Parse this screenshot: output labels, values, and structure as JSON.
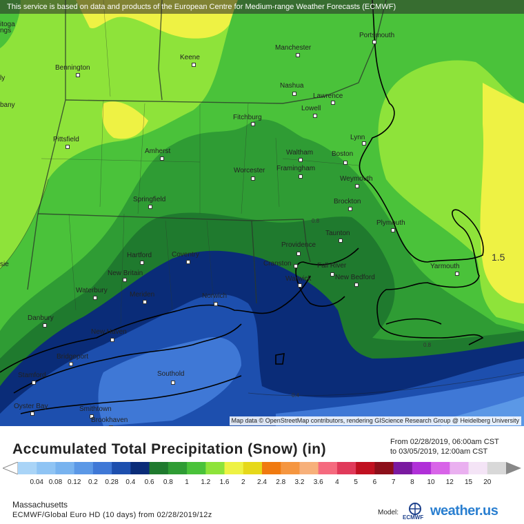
{
  "header": {
    "notice": "This service is based on data and products of the European Centre for Medium-range Weather Forecasts (ECMWF)"
  },
  "attribution": "Map data © OpenStreetMap contributors, rendering GIScience Research Group @ Heidelberg University",
  "title": "Accumulated Total Precipitation (Snow) (in)",
  "date_from": "From 02/28/2019, 06:00am CST",
  "date_to": "to 03/05/2019, 12:00am CST",
  "region": "Massachusetts",
  "model_run": "ECMWF/Global Euro HD (10 days) from 02/28/2019/12z",
  "model_label": "Model:",
  "model_logo_text": "ECMWF",
  "brand": "weather.us",
  "legend": {
    "ticks": [
      "0.04",
      "0.08",
      "0.12",
      "0.2",
      "0.28",
      "0.4",
      "0.6",
      "0.8",
      "1",
      "1.2",
      "1.6",
      "2",
      "2.4",
      "2.8",
      "3.2",
      "3.6",
      "4",
      "5",
      "6",
      "7",
      "8",
      "10",
      "12",
      "15",
      "20"
    ],
    "colors": [
      "#a9d4f7",
      "#8fc4f4",
      "#78b3ef",
      "#5b98e6",
      "#3f78d6",
      "#1d4fae",
      "#0a2c78",
      "#1f7a2e",
      "#2f9c34",
      "#4ac23a",
      "#8ee33a",
      "#eef244",
      "#e6d81a",
      "#f07a10",
      "#f59640",
      "#f7b07a",
      "#f56a7e",
      "#e03a5a",
      "#c01020",
      "#8c0f1a",
      "#7a1aa0",
      "#b030d8",
      "#d864e8",
      "#eab0f0",
      "#f4e4f6",
      "#d8d8d8"
    ]
  },
  "cities": [
    {
      "name": "Portsmouth"
    },
    {
      "name": "Manchester"
    },
    {
      "name": "Keene"
    },
    {
      "name": "Bennington"
    },
    {
      "name": "Nashua"
    },
    {
      "name": "Lawrence"
    },
    {
      "name": "Lowell"
    },
    {
      "name": "Fitchburg"
    },
    {
      "name": "Lynn"
    },
    {
      "name": "Pittsfield"
    },
    {
      "name": "Amherst"
    },
    {
      "name": "Waltham"
    },
    {
      "name": "Boston"
    },
    {
      "name": "Worcester"
    },
    {
      "name": "Framingham"
    },
    {
      "name": "Weymouth"
    },
    {
      "name": "Springfield"
    },
    {
      "name": "Brockton"
    },
    {
      "name": "Plymouth"
    },
    {
      "name": "Taunton"
    },
    {
      "name": "Providence"
    },
    {
      "name": "Hartford"
    },
    {
      "name": "Coventry"
    },
    {
      "name": "Cranston"
    },
    {
      "name": "Fall River"
    },
    {
      "name": "Yarmouth"
    },
    {
      "name": "New Britain"
    },
    {
      "name": "Warwick"
    },
    {
      "name": "New Bedford"
    },
    {
      "name": "Waterbury"
    },
    {
      "name": "Meriden"
    },
    {
      "name": "Norwich"
    },
    {
      "name": "Danbury"
    },
    {
      "name": "New Haven"
    },
    {
      "name": "Bridgeport"
    },
    {
      "name": "Stamford"
    },
    {
      "name": "Southold"
    },
    {
      "name": "Oyster Bay"
    },
    {
      "name": "Smithtown"
    },
    {
      "name": "Brookhaven"
    },
    {
      "name": "itoga"
    },
    {
      "name": "ngs"
    },
    {
      "name": "bany"
    },
    {
      "name": "sie"
    },
    {
      "name": "ly"
    }
  ],
  "contour_labels": [
    "1.5",
    "0.8",
    "0.8",
    "0.4"
  ]
}
